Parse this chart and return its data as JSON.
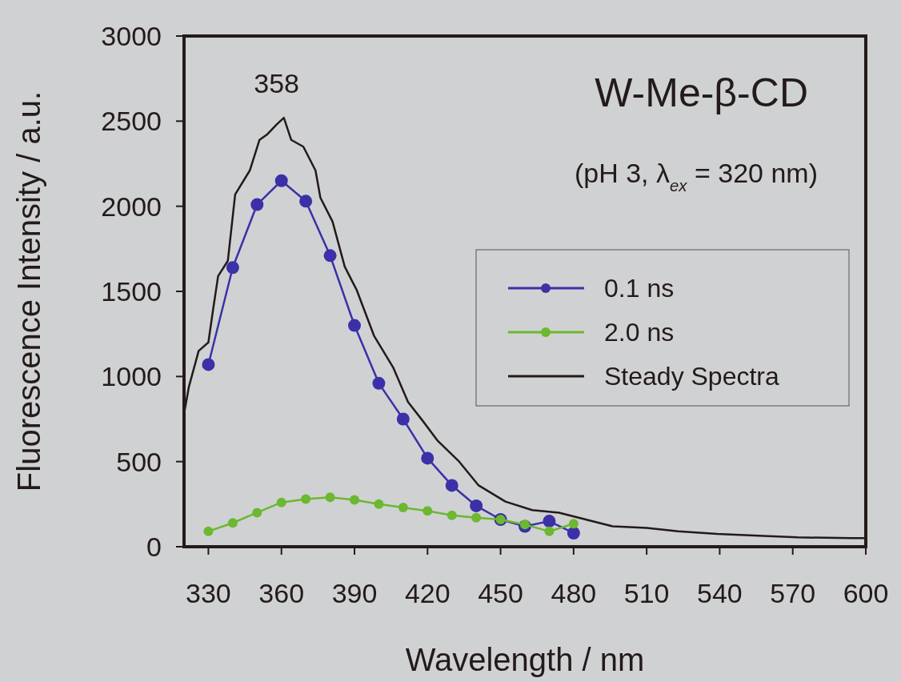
{
  "chart_data": {
    "type": "line",
    "title": "W-Me-β-CD",
    "subtitle": "(pH 3, λ$_{ex}$ = 320 nm)",
    "xlabel": "Wavelength / nm",
    "ylabel": "Fluorescence Intensity / a.u.",
    "xlim": [
      320,
      600
    ],
    "xticks": [
      330,
      360,
      390,
      420,
      450,
      480,
      510,
      540,
      570,
      600
    ],
    "ylim": [
      0,
      3000
    ],
    "yticks": [
      0,
      500,
      1000,
      1500,
      2000,
      2500,
      3000
    ],
    "grid": false,
    "legend": "right",
    "annotations": [
      {
        "text": "358",
        "x": 358,
        "y": 2480
      }
    ],
    "series": [
      {
        "name": "0.1 ns",
        "color": "#3b30a8",
        "marker": "circle",
        "x": [
          330,
          340,
          350,
          360,
          370,
          380,
          390,
          400,
          410,
          420,
          430,
          440,
          450,
          460,
          470,
          480
        ],
        "values": [
          1070,
          1640,
          2010,
          2150,
          2030,
          1710,
          1300,
          960,
          750,
          520,
          360,
          240,
          160,
          120,
          150,
          80
        ]
      },
      {
        "name": "2.0 ns",
        "color": "#6cb830",
        "marker": "circle",
        "x": [
          330,
          340,
          350,
          360,
          370,
          380,
          390,
          400,
          410,
          420,
          430,
          440,
          450,
          460,
          470,
          480
        ],
        "values": [
          90,
          140,
          200,
          260,
          280,
          290,
          275,
          250,
          230,
          210,
          185,
          170,
          160,
          130,
          90,
          135
        ]
      },
      {
        "name": "Steady Spectra",
        "color": "#231a1a",
        "marker": "none",
        "x": [
          320,
          322,
          326,
          330,
          332,
          334,
          338,
          341,
          347,
          351,
          354,
          358,
          361,
          364,
          369,
          374,
          376,
          381,
          386,
          391,
          398,
          406,
          412,
          418,
          424,
          433,
          441,
          452,
          463,
          474,
          485,
          496,
          510,
          523,
          539,
          556,
          572,
          594,
          600
        ],
        "values": [
          780,
          940,
          1150,
          1200,
          1400,
          1590,
          1680,
          2070,
          2210,
          2390,
          2420,
          2480,
          2520,
          2390,
          2350,
          2210,
          2050,
          1910,
          1645,
          1505,
          1240,
          1050,
          850,
          740,
          625,
          500,
          360,
          265,
          215,
          200,
          160,
          120,
          110,
          90,
          75,
          65,
          55,
          50,
          50
        ]
      }
    ]
  }
}
